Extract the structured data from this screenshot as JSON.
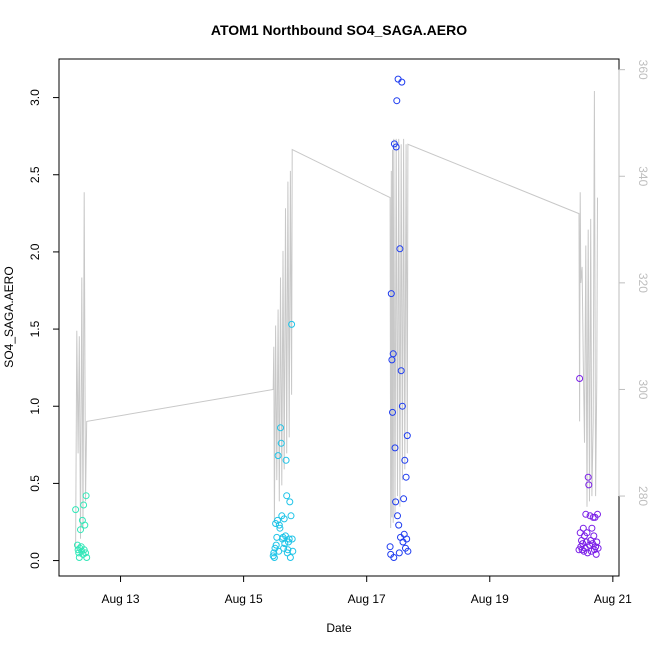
{
  "chart_data": {
    "type": "scatter",
    "title": "ATOM1 Northbound SO4_SAGA.AERO",
    "xlabel": "Date",
    "ylabel": "SO4_SAGA.AERO",
    "x_ticks": [
      "Aug 13",
      "Aug 15",
      "Aug 17",
      "Aug 19",
      "Aug 21"
    ],
    "x_tick_days": [
      13,
      15,
      17,
      19,
      21
    ],
    "xlim_days": [
      12.0,
      21.1
    ],
    "ylim": [
      -0.1,
      3.25
    ],
    "y_ticks": [
      0.0,
      0.5,
      1.0,
      1.5,
      2.0,
      2.5,
      3.0
    ],
    "y_tick_labels": [
      "0.0",
      "0.5",
      "1.0",
      "1.5",
      "2.0",
      "2.5",
      "3.0"
    ],
    "y2_ticks": [
      280,
      300,
      320,
      340,
      360
    ],
    "y2lim": [
      265,
      362
    ],
    "colors": {
      "axis": "#000000",
      "secondary_axis": "#bebebe",
      "line": "#c8c8c8",
      "flight1": "#33e7b8",
      "flight2": "#1ec4e8",
      "flight3": "#1e3cf0",
      "flight4": "#7a1ee8"
    },
    "series": [
      {
        "color_key": "flight1",
        "points": [
          [
            12.27,
            0.33
          ],
          [
            12.3,
            0.1
          ],
          [
            12.31,
            0.07
          ],
          [
            12.32,
            0.05
          ],
          [
            12.33,
            0.02
          ],
          [
            12.34,
            0.08
          ],
          [
            12.35,
            0.2
          ],
          [
            12.36,
            0.09
          ],
          [
            12.37,
            0.06
          ],
          [
            12.38,
            0.26
          ],
          [
            12.39,
            0.04
          ],
          [
            12.4,
            0.36
          ],
          [
            12.41,
            0.07
          ],
          [
            12.42,
            0.23
          ],
          [
            12.43,
            0.05
          ],
          [
            12.44,
            0.42
          ],
          [
            12.45,
            0.02
          ]
        ]
      },
      {
        "color_key": "flight2",
        "points": [
          [
            15.48,
            0.03
          ],
          [
            15.49,
            0.05
          ],
          [
            15.5,
            0.02
          ],
          [
            15.51,
            0.08
          ],
          [
            15.52,
            0.24
          ],
          [
            15.53,
            0.1
          ],
          [
            15.54,
            0.15
          ],
          [
            15.55,
            0.26
          ],
          [
            15.56,
            0.68
          ],
          [
            15.57,
            0.06
          ],
          [
            15.58,
            0.23
          ],
          [
            15.59,
            0.21
          ],
          [
            15.6,
            0.86
          ],
          [
            15.61,
            0.76
          ],
          [
            15.62,
            0.29
          ],
          [
            15.63,
            0.14
          ],
          [
            15.64,
            0.15
          ],
          [
            15.65,
            0.08
          ],
          [
            15.66,
            0.27
          ],
          [
            15.67,
            0.11
          ],
          [
            15.68,
            0.16
          ],
          [
            15.69,
            0.65
          ],
          [
            15.7,
            0.42
          ],
          [
            15.71,
            0.05
          ],
          [
            15.72,
            0.07
          ],
          [
            15.73,
            0.12
          ],
          [
            15.74,
            0.14
          ],
          [
            15.75,
            0.38
          ],
          [
            15.76,
            0.02
          ],
          [
            15.77,
            0.29
          ],
          [
            15.78,
            1.53
          ],
          [
            15.79,
            0.14
          ],
          [
            15.8,
            0.06
          ]
        ]
      },
      {
        "color_key": "flight3",
        "points": [
          [
            17.38,
            0.09
          ],
          [
            17.39,
            0.04
          ],
          [
            17.4,
            1.73
          ],
          [
            17.41,
            1.3
          ],
          [
            17.42,
            0.96
          ],
          [
            17.43,
            1.34
          ],
          [
            17.44,
            0.02
          ],
          [
            17.45,
            2.7
          ],
          [
            17.46,
            0.73
          ],
          [
            17.47,
            0.38
          ],
          [
            17.48,
            2.68
          ],
          [
            17.49,
            2.98
          ],
          [
            17.5,
            0.29
          ],
          [
            17.51,
            3.12
          ],
          [
            17.52,
            0.23
          ],
          [
            17.53,
            0.05
          ],
          [
            17.54,
            2.02
          ],
          [
            17.55,
            0.15
          ],
          [
            17.56,
            1.23
          ],
          [
            17.57,
            3.1
          ],
          [
            17.58,
            1.0
          ],
          [
            17.59,
            0.12
          ],
          [
            17.6,
            0.4
          ],
          [
            17.61,
            0.17
          ],
          [
            17.62,
            0.65
          ],
          [
            17.63,
            0.08
          ],
          [
            17.64,
            0.54
          ],
          [
            17.65,
            0.14
          ],
          [
            17.66,
            0.81
          ],
          [
            17.67,
            0.06
          ]
        ]
      },
      {
        "color_key": "flight4",
        "points": [
          [
            20.45,
            0.07
          ],
          [
            20.46,
            1.18
          ],
          [
            20.47,
            0.18
          ],
          [
            20.48,
            0.09
          ],
          [
            20.49,
            0.13
          ],
          [
            20.5,
            0.07
          ],
          [
            20.51,
            0.11
          ],
          [
            20.52,
            0.21
          ],
          [
            20.53,
            0.06
          ],
          [
            20.54,
            0.16
          ],
          [
            20.55,
            0.08
          ],
          [
            20.56,
            0.3
          ],
          [
            20.57,
            0.12
          ],
          [
            20.58,
            0.18
          ],
          [
            20.59,
            0.05
          ],
          [
            20.6,
            0.54
          ],
          [
            20.61,
            0.49
          ],
          [
            20.62,
            0.1
          ],
          [
            20.63,
            0.29
          ],
          [
            20.64,
            0.13
          ],
          [
            20.65,
            0.06
          ],
          [
            20.66,
            0.21
          ],
          [
            20.67,
            0.11
          ],
          [
            20.68,
            0.28
          ],
          [
            20.69,
            0.16
          ],
          [
            20.7,
            0.07
          ],
          [
            20.71,
            0.28
          ],
          [
            20.72,
            0.09
          ],
          [
            20.73,
            0.04
          ],
          [
            20.74,
            0.12
          ],
          [
            20.75,
            0.3
          ],
          [
            20.76,
            0.08
          ]
        ]
      }
    ],
    "secondary_series": {
      "color_key": "line",
      "points": [
        [
          12.27,
          270
        ],
        [
          12.29,
          311
        ],
        [
          12.31,
          288
        ],
        [
          12.33,
          310
        ],
        [
          12.35,
          272
        ],
        [
          12.37,
          321
        ],
        [
          12.39,
          274
        ],
        [
          12.41,
          337
        ],
        [
          12.43,
          279
        ],
        [
          12.45,
          294
        ],
        [
          15.48,
          300
        ],
        [
          15.49,
          308
        ],
        [
          15.5,
          275
        ],
        [
          15.52,
          312
        ],
        [
          15.54,
          283
        ],
        [
          15.56,
          315
        ],
        [
          15.58,
          279
        ],
        [
          15.6,
          321
        ],
        [
          15.62,
          282
        ],
        [
          15.64,
          326
        ],
        [
          15.66,
          285
        ],
        [
          15.68,
          334
        ],
        [
          15.7,
          288
        ],
        [
          15.72,
          339
        ],
        [
          15.74,
          291
        ],
        [
          15.76,
          341
        ],
        [
          15.78,
          299
        ],
        [
          15.79,
          345
        ],
        [
          17.38,
          336
        ],
        [
          17.39,
          274
        ],
        [
          17.4,
          341
        ],
        [
          17.41,
          276
        ],
        [
          17.42,
          345
        ],
        [
          17.43,
          275
        ],
        [
          17.44,
          347
        ],
        [
          17.46,
          276
        ],
        [
          17.48,
          347
        ],
        [
          17.5,
          280
        ],
        [
          17.52,
          347
        ],
        [
          17.54,
          278
        ],
        [
          17.56,
          346
        ],
        [
          17.58,
          283
        ],
        [
          17.6,
          347
        ],
        [
          17.62,
          285
        ],
        [
          17.64,
          346
        ],
        [
          17.66,
          288
        ],
        [
          17.67,
          346
        ],
        [
          20.45,
          333
        ],
        [
          20.46,
          294
        ],
        [
          20.47,
          337
        ],
        [
          20.48,
          320
        ],
        [
          20.5,
          323
        ],
        [
          20.52,
          305
        ],
        [
          20.54,
          290
        ],
        [
          20.56,
          327
        ],
        [
          20.58,
          278
        ],
        [
          20.6,
          330
        ],
        [
          20.62,
          279
        ],
        [
          20.64,
          332
        ],
        [
          20.66,
          280
        ],
        [
          20.68,
          294
        ],
        [
          20.7,
          356
        ],
        [
          20.72,
          280
        ],
        [
          20.74,
          302
        ],
        [
          20.75,
          336
        ]
      ]
    }
  }
}
